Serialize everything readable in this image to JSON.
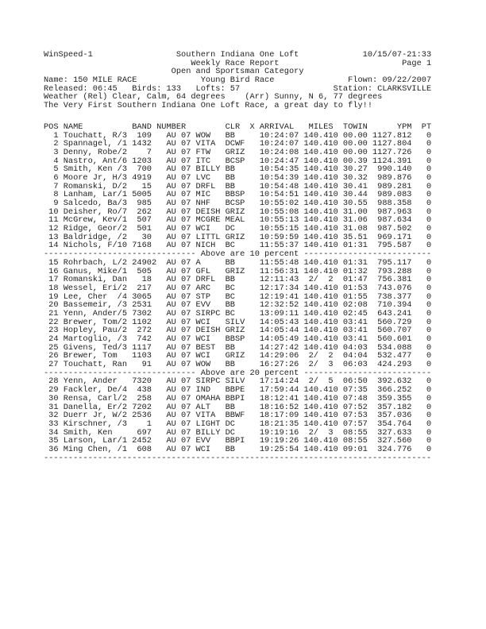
{
  "report": {
    "app_name": "WinSpeed-1",
    "printed": "10/15/07-21:33",
    "organization": "Southern Indiana One Loft",
    "title": "Weekly Race Report",
    "page_label": "Page 1",
    "category": "Open and Sportsman Category",
    "race": {
      "name_label": "Name:",
      "name": "150 MILE RACE",
      "type": "Young Bird Race",
      "flown_label": "Flown:",
      "flown": "09/22/2007"
    },
    "release": {
      "released_label": "Released:",
      "released": "06:45",
      "birds_label": "Birds:",
      "birds": "133",
      "lofts_label": "Lofts:",
      "lofts": "57",
      "station_label": "Station:",
      "station": "CLARKSVILLE"
    },
    "weather": {
      "release": "Weather (Rel) Clear, Calm, 64 degrees",
      "arrival": "(Arr) Sunny, N 6, 77 degrees"
    },
    "comment": "The Very First Southern Indiana One Loft Race, a great day to fly!!"
  },
  "table": {
    "columns": [
      "POS",
      "NAME",
      "BAND",
      "NUMBER",
      "CLR",
      "X",
      "ARRIVAL",
      "MILES",
      "TOWIN",
      "YPM",
      "PT"
    ],
    "rows": [
      {
        "pos": 1,
        "name": "Touchatt, R/3",
        "band": "109",
        "number": "AU 07 WOW",
        "clr": "BB",
        "arrival": "10:24:07",
        "miles": "140.410",
        "towin": "00.00",
        "ypm": "1127.812",
        "pt": "0"
      },
      {
        "pos": 2,
        "name": "Spannagel, /1",
        "band": "1432",
        "number": "AU 07 VITA",
        "clr": "DCWF",
        "arrival": "10:24:07",
        "miles": "140.410",
        "towin": "00.00",
        "ypm": "1127.804",
        "pt": "0"
      },
      {
        "pos": 3,
        "name": "Denny, Robe/2",
        "band": "7",
        "number": "AU 07 FTW",
        "clr": "GRIZ",
        "arrival": "10:24:08",
        "miles": "140.410",
        "towin": "00.00",
        "ypm": "1127.726",
        "pt": "0"
      },
      {
        "pos": 4,
        "name": "Nastro, Ant/6",
        "band": "1203",
        "number": "AU 07 ITC",
        "clr": "BCSP",
        "arrival": "10:24:47",
        "miles": "140.410",
        "towin": "00.39",
        "ypm": "1124.391",
        "pt": "0"
      },
      {
        "pos": 5,
        "name": "Smith, Ken /3",
        "band": "700",
        "number": "AU 07 BILLY",
        "clr": "BB",
        "arrival": "10:54:35",
        "miles": "140.410",
        "towin": "30.27",
        "ypm": "990.140",
        "pt": "0"
      },
      {
        "pos": 6,
        "name": "Moore Jr, H/3",
        "band": "4919",
        "number": "AU 07 LVC",
        "clr": "BB",
        "arrival": "10:54:39",
        "miles": "140.410",
        "towin": "30.32",
        "ypm": "989.876",
        "pt": "0"
      },
      {
        "pos": 7,
        "name": "Romanski, D/2",
        "band": "15",
        "number": "AU 07 DRFL",
        "clr": "BB",
        "arrival": "10:54:48",
        "miles": "140.410",
        "towin": "30.41",
        "ypm": "989.281",
        "pt": "0"
      },
      {
        "pos": 8,
        "name": "Lanham, Lar/1",
        "band": "5005",
        "number": "AU 07 MIC",
        "clr": "BBSP",
        "arrival": "10:54:51",
        "miles": "140.410",
        "towin": "30.44",
        "ypm": "989.083",
        "pt": "0"
      },
      {
        "pos": 9,
        "name": "Salcedo, Ba/3",
        "band": "985",
        "number": "AU 07 NHF",
        "clr": "BCSP",
        "arrival": "10:55:02",
        "miles": "140.410",
        "towin": "30.55",
        "ypm": "988.358",
        "pt": "0"
      },
      {
        "pos": 10,
        "name": "Deisher, Ro/7",
        "band": "262",
        "number": "AU 07 DEISH",
        "clr": "GRIZ",
        "arrival": "10:55:08",
        "miles": "140.410",
        "towin": "31.00",
        "ypm": "987.963",
        "pt": "0"
      },
      {
        "pos": 11,
        "name": "McGrew, Kev/1",
        "band": "507",
        "number": "AU 07 MCGRE",
        "clr": "MEAL",
        "arrival": "10:55:13",
        "miles": "140.410",
        "towin": "31.06",
        "ypm": "987.634",
        "pt": "0"
      },
      {
        "pos": 12,
        "name": "Ridge, Geor/2",
        "band": "501",
        "number": "AU 07 WCI",
        "clr": "DC",
        "arrival": "10:55:15",
        "miles": "140.410",
        "towin": "31.08",
        "ypm": "987.502",
        "pt": "0"
      },
      {
        "pos": 13,
        "name": "Baldridge, /2",
        "band": "30",
        "number": "AU 07 LITTL",
        "clr": "GRIZ",
        "arrival": "10:59:59",
        "miles": "140.410",
        "towin": "35.51",
        "ypm": "969.171",
        "pt": "0"
      },
      {
        "pos": 14,
        "name": "Nichols, F/10",
        "band": "7168",
        "number": "AU 07 NICH",
        "clr": "BC",
        "arrival": "11:55:37",
        "miles": "140.410",
        "towin": "01:31",
        "ypm": "795.587",
        "pt": "0"
      },
      {
        "rule": "Above are 10 percent"
      },
      {
        "pos": 15,
        "name": "Rohrbach, L/2",
        "band": "24902",
        "number": "AU 07 A",
        "clr": "BB",
        "arrival": "11:55:48",
        "miles": "140.410",
        "towin": "01:31",
        "ypm": "795.117",
        "pt": "0"
      },
      {
        "pos": 16,
        "name": "Ganus, Mike/1",
        "band": "505",
        "number": "AU 07 GFL",
        "clr": "GRIZ",
        "arrival": "11:56:31",
        "miles": "140.410",
        "towin": "01:32",
        "ypm": "793.288",
        "pt": "0"
      },
      {
        "pos": 17,
        "name": "Romanski, Dan",
        "band": "18",
        "number": "AU 07 DRFL",
        "clr": "BB",
        "arrival": "12:11:43",
        "miles": "2/ 2",
        "towin": "01:47",
        "ypm": "756.381",
        "pt": "0"
      },
      {
        "pos": 18,
        "name": "Wessel, Eri/2",
        "band": "217",
        "number": "AU 07 ARC",
        "clr": "BC",
        "arrival": "12:17:34",
        "miles": "140.410",
        "towin": "01:53",
        "ypm": "743.076",
        "pt": "0"
      },
      {
        "pos": 19,
        "name": "Lee, Cher  /4",
        "band": "3065",
        "number": "AU 07 STP",
        "clr": "BC",
        "arrival": "12:19:41",
        "miles": "140.410",
        "towin": "01:55",
        "ypm": "738.377",
        "pt": "0"
      },
      {
        "pos": 20,
        "name": "Bassemeir, /3",
        "band": "2531",
        "number": "AU 07 EVV",
        "clr": "BB",
        "arrival": "12:32:52",
        "miles": "140.410",
        "towin": "02:08",
        "ypm": "710.394",
        "pt": "0"
      },
      {
        "pos": 21,
        "name": "Yenn, Ander/5",
        "band": "7302",
        "number": "AU 07 SIRPC",
        "clr": "BC",
        "arrival": "13:09:11",
        "miles": "140.410",
        "towin": "02:45",
        "ypm": "643.241",
        "pt": "0"
      },
      {
        "pos": 22,
        "name": "Brewer, Tom/2",
        "band": "1102",
        "number": "AU 07 WCI",
        "clr": "SILV",
        "arrival": "14:05:43",
        "miles": "140.410",
        "towin": "03:41",
        "ypm": "560.729",
        "pt": "0"
      },
      {
        "pos": 23,
        "name": "Hopley, Pau/2",
        "band": "272",
        "number": "AU 07 DEISH",
        "clr": "GRIZ",
        "arrival": "14:05:44",
        "miles": "140.410",
        "towin": "03:41",
        "ypm": "560.707",
        "pt": "0"
      },
      {
        "pos": 24,
        "name": "Martoglio, /3",
        "band": "742",
        "number": "AU 07 WCI",
        "clr": "BBSP",
        "arrival": "14:05:49",
        "miles": "140.410",
        "towin": "03:41",
        "ypm": "560.601",
        "pt": "0"
      },
      {
        "pos": 25,
        "name": "Givens, Ted/3",
        "band": "1117",
        "number": "AU 07 BEST",
        "clr": "BB",
        "arrival": "14:27:42",
        "miles": "140.410",
        "towin": "04:03",
        "ypm": "534.088",
        "pt": "0"
      },
      {
        "pos": 26,
        "name": "Brewer, Tom",
        "band": "1103",
        "number": "AU 07 WCI",
        "clr": "GRIZ",
        "arrival": "14:29:06",
        "miles": "2/ 2",
        "towin": "04:04",
        "ypm": "532.477",
        "pt": "0"
      },
      {
        "pos": 27,
        "name": "Touchatt, Ran",
        "band": "91",
        "number": "AU 07 WOW",
        "clr": "BB",
        "arrival": "16:27:26",
        "miles": "2/ 3",
        "towin": "06:03",
        "ypm": "424.293",
        "pt": "0"
      },
      {
        "rule": "Above are 20 percent"
      },
      {
        "pos": 28,
        "name": "Yenn, Ander",
        "band": "7320",
        "number": "AU 07 SIRPC",
        "clr": "SILV",
        "arrival": "17:14:24",
        "miles": "2/ 5",
        "towin": "06:50",
        "ypm": "392.632",
        "pt": "0"
      },
      {
        "pos": 29,
        "name": "Fackler, De/4",
        "band": "438",
        "number": "AU 07 IND",
        "clr": "BBPE",
        "arrival": "17:59:44",
        "miles": "140.410",
        "towin": "07:35",
        "ypm": "366.252",
        "pt": "0"
      },
      {
        "pos": 30,
        "name": "Rensa, Carl/2",
        "band": "258",
        "number": "AU 07 OMAHA",
        "clr": "BBPI",
        "arrival": "18:12:41",
        "miles": "140.410",
        "towin": "07:48",
        "ypm": "359.355",
        "pt": "0"
      },
      {
        "pos": 31,
        "name": "Danella, Er/2",
        "band": "7202",
        "number": "AU 07 ALT",
        "clr": "BB",
        "arrival": "18:16:52",
        "miles": "140.410",
        "towin": "07:52",
        "ypm": "357.182",
        "pt": "0"
      },
      {
        "pos": 32,
        "name": "Duerr Jr, W/2",
        "band": "2536",
        "number": "AU 07 VITA",
        "clr": "BBWF",
        "arrival": "18:17:09",
        "miles": "140.410",
        "towin": "07:53",
        "ypm": "357.036",
        "pt": "0"
      },
      {
        "pos": 33,
        "name": "Kirschner, /3",
        "band": "1",
        "number": "AU 07 LIGHT",
        "clr": "DC",
        "arrival": "18:21:35",
        "miles": "140.410",
        "towin": "07:57",
        "ypm": "354.764",
        "pt": "0"
      },
      {
        "pos": 34,
        "name": "Smith, Ken",
        "band": "697",
        "number": "AU 07 BILLY",
        "clr": "DC",
        "arrival": "19:19:16",
        "miles": "2/ 3",
        "towin": "08:55",
        "ypm": "327.633",
        "pt": "0"
      },
      {
        "pos": 35,
        "name": "Larson, Lar/1",
        "band": "2452",
        "number": "AU 07 EVV",
        "clr": "BBPI",
        "arrival": "19:19:26",
        "miles": "140.410",
        "towin": "08:55",
        "ypm": "327.560",
        "pt": "0"
      },
      {
        "pos": 36,
        "name": "Ming Chen, /1",
        "band": "608",
        "number": "AU 07 WCI",
        "clr": "BB",
        "arrival": "19:25:54",
        "miles": "140.410",
        "towin": "09:01",
        "ypm": "324.776",
        "pt": "0"
      },
      {
        "rule": ""
      }
    ]
  },
  "colors": {
    "ink": "#1f1f1f",
    "paper": "#ffffff"
  }
}
